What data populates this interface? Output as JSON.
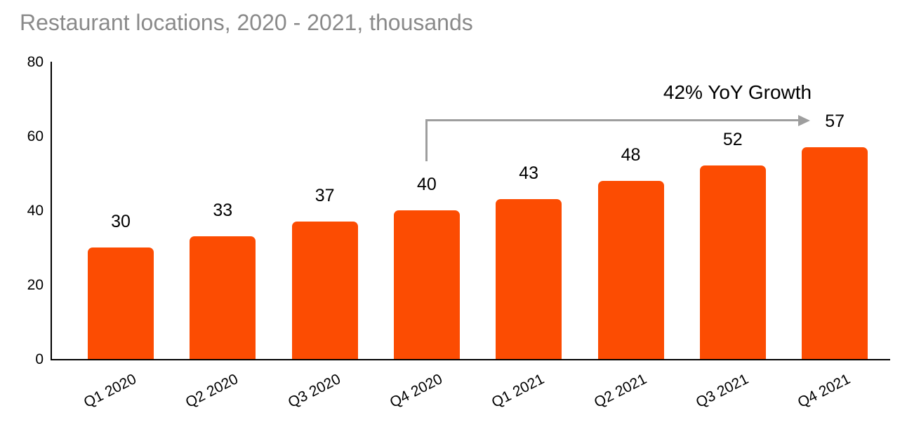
{
  "title": "Restaurant locations, 2020 - 2021, thousands",
  "colors": {
    "bar": "#FC4C02",
    "title_text": "#8A8A8A",
    "axis": "#000000",
    "label_text": "#000000",
    "arrow": "#9E9E9E"
  },
  "chart_data": {
    "type": "bar",
    "title": "Restaurant locations, 2020 - 2021, thousands",
    "categories": [
      "Q1 2020",
      "Q2 2020",
      "Q3 2020",
      "Q4 2020",
      "Q1 2021",
      "Q2 2021",
      "Q3 2021",
      "Q4 2021"
    ],
    "values": [
      30,
      33,
      37,
      40,
      43,
      48,
      52,
      57
    ],
    "xlabel": "",
    "ylabel": "",
    "ylim": [
      0,
      80
    ],
    "yticks": [
      0,
      20,
      40,
      60,
      80
    ],
    "grid": false,
    "legend": "none",
    "bar_color": "#FC4C02",
    "data_labels_shown": true,
    "annotation": {
      "text": "42% YoY Growth",
      "from_category": "Q4 2020",
      "to_category": "Q4 2021",
      "arrow_color": "#9E9E9E"
    }
  }
}
